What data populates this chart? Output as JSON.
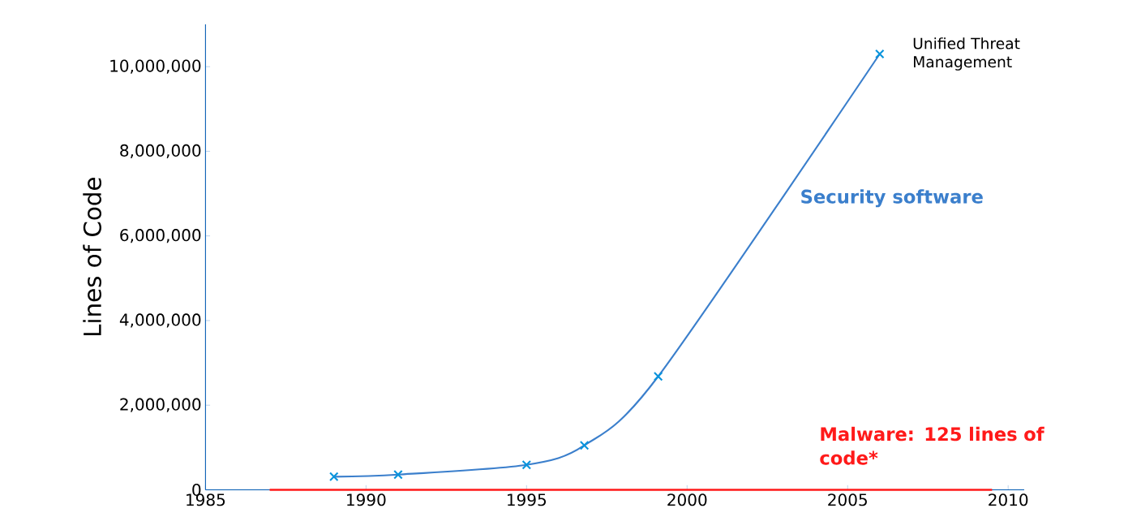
{
  "chart_data": {
    "type": "line",
    "ylabel": "Lines of Code",
    "x": [
      1989,
      1991,
      1995,
      1996.8,
      1999.1,
      2006
    ],
    "series": [
      {
        "name": "Security software",
        "color": "#3b7fcc",
        "values": [
          310000,
          360000,
          590000,
          1050000,
          2680000,
          10300000
        ]
      }
    ],
    "xlim": [
      1985,
      2010.5
    ],
    "xticks": [
      1985,
      1990,
      1995,
      2000,
      2005,
      2010
    ],
    "ylim": [
      0,
      11000000
    ],
    "yticks": [
      {
        "value": 0,
        "label": "0"
      },
      {
        "value": 2000000,
        "label": "2,000,000"
      },
      {
        "value": 4000000,
        "label": "4,000,000"
      },
      {
        "value": 6000000,
        "label": "6,000,000"
      },
      {
        "value": 8000000,
        "label": "8,000,000"
      },
      {
        "value": 10000000,
        "label": "10,000,000"
      }
    ],
    "marker": "cross",
    "grid": false,
    "ref_lines": [
      {
        "axis": "y",
        "value": 125,
        "label": "Malware: 125 lines of code*",
        "color": "#ff1a1a"
      }
    ],
    "annotations": [
      {
        "text": "Unified Threat Management",
        "x": 2006,
        "y": 10300000
      }
    ]
  }
}
